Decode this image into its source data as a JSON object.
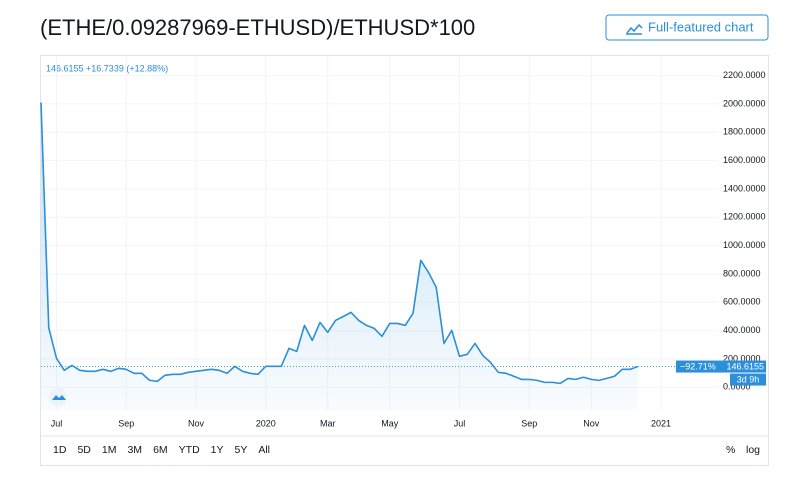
{
  "chart_data": {
    "type": "line",
    "title": "(ETHE/0.09287969-ETHUSD)/ETHUSD*100",
    "button": "Full-featured chart",
    "header": "146.6155 +16.7339 (+12.88%)",
    "price_change_label": "−92.71%",
    "price_label": "146.6155",
    "countdown_label": "3d 9h",
    "categories": [
      null,
      null,
      "Jul",
      null,
      null,
      null,
      null,
      null,
      null,
      null,
      null,
      "Sep",
      null,
      null,
      null,
      null,
      null,
      null,
      null,
      null,
      "Nov",
      null,
      null,
      null,
      null,
      null,
      null,
      null,
      null,
      "2020",
      null,
      null,
      null,
      null,
      null,
      null,
      null,
      "Mar",
      null,
      null,
      null,
      null,
      null,
      null,
      null,
      "May",
      null,
      null,
      null,
      null,
      null,
      null,
      null,
      null,
      "Jul",
      null,
      null,
      null,
      null,
      null,
      null,
      null,
      null,
      "Sep",
      null,
      null,
      null,
      null,
      null,
      null,
      null,
      "Nov",
      null,
      null,
      null,
      null,
      null,
      null,
      null,
      null,
      "2021"
    ],
    "series": [
      {
        "name": "ETHE",
        "color": "#2b8fd9",
        "values": [
          2010,
          420,
          205,
          120,
          155,
          120,
          113,
          113,
          127,
          113,
          134,
          127,
          99,
          99,
          50,
          42,
          85,
          92,
          92,
          106,
          113,
          120,
          127,
          120,
          99,
          148,
          113,
          99,
          92,
          148,
          148,
          148,
          275,
          254,
          437,
          331,
          458,
          388,
          472,
          500,
          529,
          472,
          437,
          416,
          360,
          451,
          451,
          437,
          522,
          896,
          811,
          705,
          310,
          402,
          219,
          233,
          310,
          226,
          176,
          106,
          99,
          78,
          56,
          56,
          49,
          35,
          35,
          28,
          63,
          56,
          71,
          56,
          49,
          63,
          78,
          127,
          127,
          146.6155,
          null,
          null,
          null
        ]
      }
    ],
    "ylim": [
      -160,
      2310
    ],
    "yticks": [
      {
        "value": 0,
        "label": "0.0000"
      },
      {
        "value": 200,
        "label": "200.0000"
      },
      {
        "value": 400,
        "label": "400.0000"
      },
      {
        "value": 600,
        "label": "600.0000"
      },
      {
        "value": 800,
        "label": "800.0000"
      },
      {
        "value": 1000,
        "label": "1000.0000"
      },
      {
        "value": 1200,
        "label": "1200.0000"
      },
      {
        "value": 1400,
        "label": "1400.0000"
      },
      {
        "value": 1600,
        "label": "1600.0000"
      },
      {
        "value": 1800,
        "label": "1800.0000"
      },
      {
        "value": 2000,
        "label": "2000.0000"
      },
      {
        "value": 2200,
        "label": "2200.0000"
      }
    ],
    "grid": true,
    "ranges": [
      "1D",
      "5D",
      "1M",
      "3M",
      "6M",
      "YTD",
      "1Y",
      "5Y",
      "All"
    ],
    "scale_options": [
      "%",
      "log"
    ]
  }
}
